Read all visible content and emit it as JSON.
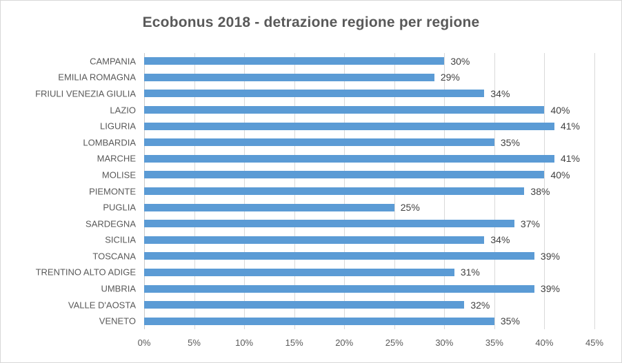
{
  "chart_data": {
    "type": "bar",
    "orientation": "horizontal",
    "title": "Ecobonus 2018 - detrazione regione per regione",
    "categories": [
      "CAMPANIA",
      "EMILIA ROMAGNA",
      "FRIULI VENEZIA GIULIA",
      "LAZIO",
      "LIGURIA",
      "LOMBARDIA",
      "MARCHE",
      "MOLISE",
      "PIEMONTE",
      "PUGLIA",
      "SARDEGNA",
      "SICILIA",
      "TOSCANA",
      "TRENTINO ALTO ADIGE",
      "UMBRIA",
      "VALLE D'AOSTA",
      "VENETO"
    ],
    "values": [
      30,
      29,
      34,
      40,
      41,
      35,
      41,
      40,
      38,
      25,
      37,
      34,
      39,
      31,
      39,
      32,
      35
    ],
    "value_labels": [
      "30%",
      "29%",
      "34%",
      "40%",
      "41%",
      "35%",
      "41%",
      "40%",
      "38%",
      "25%",
      "37%",
      "34%",
      "39%",
      "31%",
      "39%",
      "32%",
      "35%"
    ],
    "xlabel": "",
    "ylabel": "",
    "xlim": [
      0,
      45
    ],
    "xtick_values": [
      0,
      5,
      10,
      15,
      20,
      25,
      30,
      35,
      40,
      45
    ],
    "xtick_labels": [
      "0%",
      "5%",
      "10%",
      "15%",
      "20%",
      "25%",
      "30%",
      "35%",
      "40%",
      "45%"
    ],
    "grid": "vertical-on",
    "legend": "none",
    "colors": {
      "bar": "#5b9bd5",
      "gridline": "#d9d9d9",
      "axis_line": "#c9c9c9",
      "title_text": "#595959",
      "axis_text": "#595959",
      "data_label_text": "#404040",
      "background": "#ffffff",
      "frame_border": "#d7d7d7"
    }
  }
}
